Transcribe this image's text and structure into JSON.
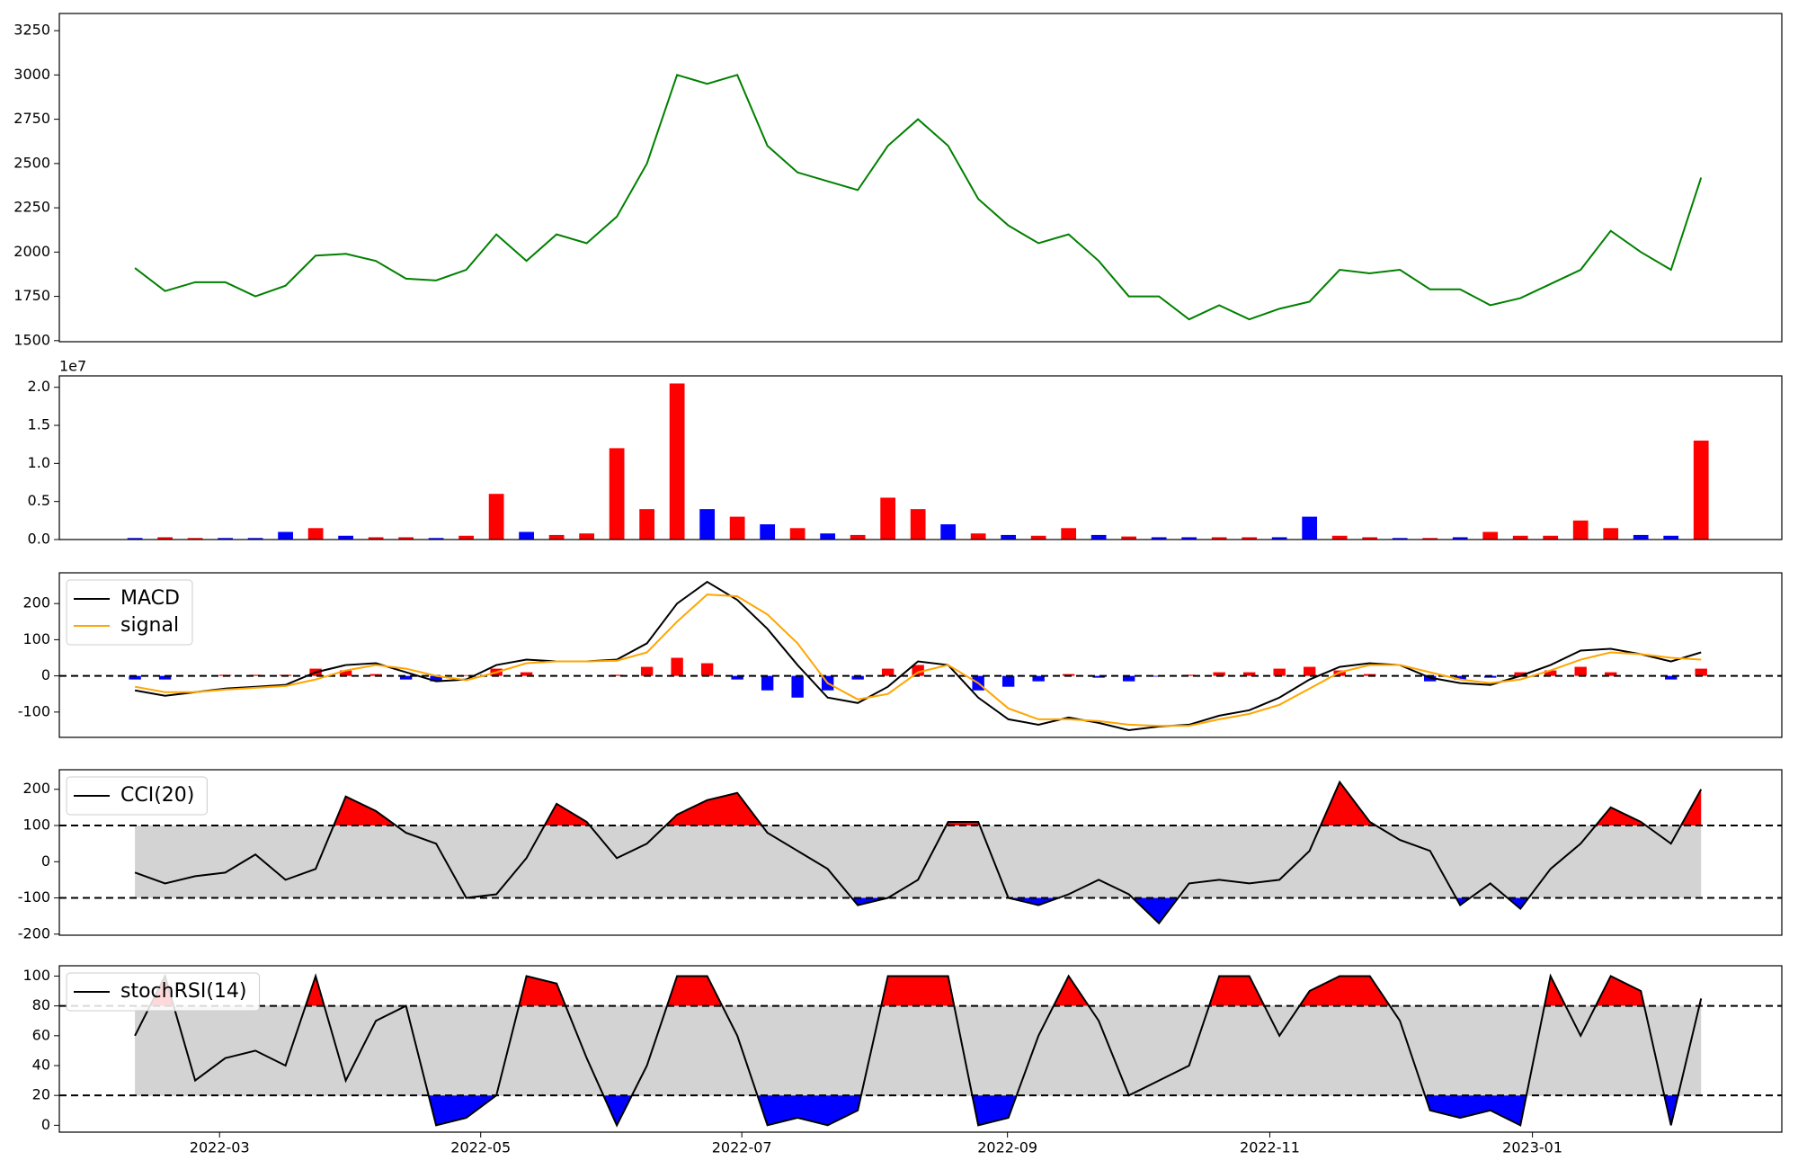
{
  "chart_data": [
    {
      "type": "line",
      "xlim": [
        -2.51,
        54.68
      ],
      "ylim": [
        1494,
        3347
      ],
      "yticks": [
        1500,
        1750,
        2000,
        2250,
        2500,
        2750,
        3000,
        3250
      ],
      "series": [
        {
          "color": "green",
          "values": [
            1910,
            1780,
            1830,
            1830,
            1750,
            1810,
            1980,
            1990,
            1950,
            1850,
            1840,
            1900,
            2100,
            1950,
            2100,
            2050,
            2200,
            2500,
            3000,
            2950,
            3000,
            2600,
            2450,
            2400,
            2350,
            2600,
            2750,
            2600,
            2300,
            2150,
            2050,
            2100,
            1950,
            1750,
            1750,
            1620,
            1700,
            1620,
            1680,
            1720,
            1900,
            1880,
            1900,
            1790,
            1790,
            1700,
            1740,
            1820,
            1900,
            2120,
            2000,
            1900,
            2420
          ]
        }
      ]
    },
    {
      "type": "bar",
      "offset_label": "1e7",
      "xlim": [
        -2.51,
        54.68
      ],
      "ylim": [
        0,
        2.15
      ],
      "yticks": [
        {
          "value": 0,
          "label": "0.0"
        },
        0.5,
        {
          "value": 1,
          "label": "1.0"
        },
        1.5,
        {
          "value": 2,
          "label": "2.0"
        }
      ],
      "values": [
        0.02,
        0.03,
        0.02,
        0.02,
        0.02,
        0.1,
        0.15,
        0.05,
        0.03,
        0.03,
        0.02,
        0.05,
        0.6,
        0.1,
        0.06,
        0.08,
        1.2,
        0.4,
        2.05,
        0.4,
        0.3,
        0.2,
        0.15,
        0.08,
        0.06,
        0.55,
        0.4,
        0.2,
        0.08,
        0.06,
        0.05,
        0.15,
        0.06,
        0.04,
        0.03,
        0.03,
        0.03,
        0.03,
        0.03,
        0.3,
        0.05,
        0.03,
        0.02,
        0.02,
        0.03,
        0.1,
        0.05,
        0.05,
        0.25,
        0.15,
        0.06,
        0.05,
        1.3
      ],
      "colors": [
        "blue",
        "red",
        "red",
        "blue",
        "blue",
        "blue",
        "red",
        "blue",
        "red",
        "red",
        "blue",
        "red",
        "red",
        "blue",
        "red",
        "red",
        "red",
        "red",
        "red",
        "blue",
        "red",
        "blue",
        "red",
        "blue",
        "red",
        "red",
        "red",
        "blue",
        "red",
        "blue",
        "red",
        "red",
        "blue",
        "red",
        "blue",
        "blue",
        "red",
        "red",
        "blue",
        "blue",
        "red",
        "red",
        "blue",
        "red",
        "blue",
        "red",
        "red",
        "red",
        "red",
        "red",
        "blue",
        "blue",
        "red"
      ]
    },
    {
      "type": "line",
      "legend": "upper left",
      "xlim": [
        -2.51,
        54.68
      ],
      "ylim": [
        -170,
        285
      ],
      "yticks": [
        -100,
        0,
        100,
        200
      ],
      "hlines": [
        0
      ],
      "series": [
        {
          "name": "MACD",
          "color": "black",
          "values": [
            -40,
            -55,
            -45,
            -35,
            -30,
            -25,
            10,
            30,
            35,
            10,
            -15,
            -10,
            30,
            45,
            40,
            40,
            45,
            90,
            200,
            260,
            210,
            130,
            30,
            -60,
            -75,
            -30,
            40,
            30,
            -60,
            -120,
            -135,
            -115,
            -130,
            -150,
            -140,
            -135,
            -110,
            -95,
            -60,
            -10,
            25,
            35,
            30,
            -5,
            -20,
            -25,
            0,
            30,
            70,
            75,
            60,
            40,
            65
          ]
        },
        {
          "name": "signal",
          "color": "orange",
          "values": [
            -30,
            -45,
            -45,
            -38,
            -33,
            -28,
            -10,
            15,
            30,
            20,
            0,
            -12,
            10,
            35,
            40,
            40,
            42,
            65,
            150,
            225,
            220,
            170,
            90,
            -20,
            -65,
            -50,
            10,
            30,
            -20,
            -90,
            -120,
            -120,
            -125,
            -135,
            -138,
            -138,
            -120,
            -105,
            -80,
            -35,
            10,
            30,
            30,
            10,
            -10,
            -20,
            -10,
            15,
            45,
            65,
            60,
            50,
            45
          ]
        }
      ],
      "histogram": {
        "up_color": "red",
        "down_color": "blue",
        "values": [
          -10,
          -10,
          0,
          3,
          3,
          3,
          20,
          15,
          5,
          -10,
          -15,
          2,
          20,
          10,
          0,
          0,
          3,
          25,
          50,
          35,
          -10,
          -40,
          -60,
          -40,
          -10,
          20,
          30,
          0,
          -40,
          -30,
          -15,
          5,
          -5,
          -15,
          -2,
          3,
          10,
          10,
          20,
          25,
          15,
          5,
          0,
          -15,
          -10,
          -5,
          10,
          15,
          25,
          10,
          0,
          -10,
          20
        ]
      }
    },
    {
      "type": "line",
      "legend": "upper left",
      "xlim": [
        -2.51,
        54.68
      ],
      "ylim": [
        -203,
        254
      ],
      "yticks": [
        -200,
        -100,
        0,
        100,
        200
      ],
      "hlines": [
        -100,
        100
      ],
      "band_color": "lightgray",
      "above_color": "red",
      "below_color": "blue",
      "series": [
        {
          "name": "CCI(20)",
          "color": "black",
          "values": [
            -30,
            -60,
            -40,
            -30,
            20,
            -50,
            -20,
            180,
            140,
            80,
            50,
            -100,
            -90,
            10,
            160,
            110,
            10,
            50,
            130,
            170,
            190,
            80,
            30,
            -20,
            -120,
            -100,
            -50,
            110,
            110,
            -100,
            -120,
            -90,
            -50,
            -90,
            -170,
            -60,
            -50,
            -60,
            -50,
            30,
            220,
            110,
            60,
            30,
            -120,
            -60,
            -130,
            -20,
            50,
            150,
            110,
            50,
            200
          ]
        }
      ]
    },
    {
      "type": "line",
      "legend": "upper left",
      "xlim": [
        -2.51,
        54.68
      ],
      "ylim": [
        -4.6,
        106.9
      ],
      "yticks": [
        0,
        20,
        40,
        60,
        80,
        100
      ],
      "hlines": [
        20,
        80
      ],
      "band_color": "lightgray",
      "above_color": "red",
      "below_color": "blue",
      "xticks": [
        {
          "value": 2.81,
          "label": "2022-03"
        },
        {
          "value": 11.48,
          "label": "2022-05"
        },
        {
          "value": 20.15,
          "label": "2022-07"
        },
        {
          "value": 28.97,
          "label": "2022-09"
        },
        {
          "value": 37.68,
          "label": "2022-11"
        },
        {
          "value": 46.4,
          "label": "2023-01"
        }
      ],
      "series": [
        {
          "name": "stochRSI(14)",
          "color": "black",
          "values": [
            60,
            100,
            30,
            45,
            50,
            40,
            100,
            30,
            70,
            80,
            0,
            5,
            20,
            100,
            95,
            45,
            0,
            40,
            100,
            100,
            60,
            0,
            5,
            0,
            10,
            100,
            100,
            100,
            0,
            5,
            60,
            100,
            70,
            20,
            30,
            40,
            100,
            100,
            60,
            90,
            100,
            100,
            70,
            10,
            5,
            10,
            0,
            100,
            60,
            100,
            90,
            0,
            85
          ]
        }
      ]
    }
  ]
}
